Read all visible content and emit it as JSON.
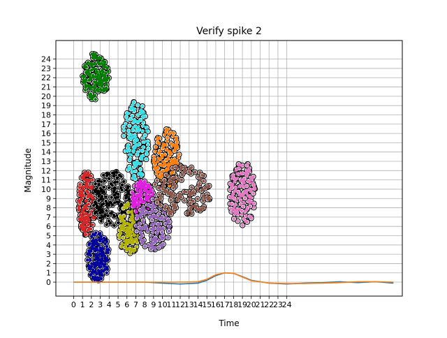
{
  "chart_data": {
    "type": "scatter",
    "title": "Verify spike 2",
    "xlabel": "Time",
    "ylabel": "Magnitude",
    "xlim": [
      -2,
      37
    ],
    "ylim": [
      -1.5,
      26
    ],
    "xticks": [
      "0",
      "1",
      "2",
      "3",
      "4",
      "5",
      "6",
      "7",
      "8",
      "9",
      "10",
      "11",
      "12",
      "13",
      "14",
      "15",
      "16",
      "17",
      "18",
      "19",
      "20",
      "21",
      "22",
      "23",
      "24"
    ],
    "yticks": [
      "0",
      "1",
      "2",
      "3",
      "4",
      "5",
      "6",
      "7",
      "8",
      "9",
      "10",
      "11",
      "12",
      "13",
      "14",
      "15",
      "16",
      "17",
      "18",
      "19",
      "20",
      "21",
      "22",
      "23",
      "24"
    ],
    "grid": true,
    "clusters": [
      {
        "name": "red",
        "color": "#d62728",
        "x": [
          0.5,
          2.5
        ],
        "y": [
          5.0,
          12.0
        ]
      },
      {
        "name": "blue",
        "color": "#0000a0",
        "x": [
          1.5,
          4.0
        ],
        "y": [
          0.0,
          5.5
        ]
      },
      {
        "name": "green",
        "color": "#007f00",
        "x": [
          1.0,
          4.0
        ],
        "y": [
          19.5,
          24.8
        ]
      },
      {
        "name": "black",
        "color": "#000000",
        "x": [
          2.0,
          6.5
        ],
        "y": [
          6.0,
          12.0
        ]
      },
      {
        "name": "olive",
        "color": "#b3b300",
        "x": [
          5.0,
          7.5
        ],
        "y": [
          3.0,
          8.5
        ]
      },
      {
        "name": "cyan",
        "color": "#36e0e8",
        "x": [
          5.5,
          8.5
        ],
        "y": [
          11.0,
          19.5
        ]
      },
      {
        "name": "magenta",
        "color": "#e020e0",
        "x": [
          6.5,
          9.0
        ],
        "y": [
          7.0,
          11.0
        ]
      },
      {
        "name": "purple",
        "color": "#9467bd",
        "x": [
          7.0,
          11.0
        ],
        "y": [
          3.5,
          9.0
        ]
      },
      {
        "name": "orange",
        "color": "#ff7f0e",
        "x": [
          9.0,
          12.0
        ],
        "y": [
          10.0,
          16.5
        ]
      },
      {
        "name": "brown",
        "color": "#8c564b",
        "x": [
          9.0,
          15.5
        ],
        "y": [
          7.0,
          12.5
        ]
      },
      {
        "name": "pink",
        "color": "#e377c2",
        "x": [
          17.5,
          20.5
        ],
        "y": [
          6.0,
          13.0
        ]
      }
    ],
    "series": [
      {
        "name": "line-blue",
        "color": "#1f77b4",
        "x": [
          0,
          5,
          8,
          10,
          12,
          14,
          15,
          16,
          17,
          18,
          19,
          20,
          22,
          24,
          26,
          28,
          30,
          32,
          34,
          36
        ],
        "y": [
          0,
          0,
          0,
          -0.1,
          -0.2,
          -0.1,
          0.2,
          0.7,
          1.0,
          0.95,
          0.6,
          0.2,
          -0.1,
          -0.2,
          -0.1,
          -0.05,
          0.05,
          -0.05,
          0.05,
          -0.1
        ]
      },
      {
        "name": "line-orange",
        "color": "#ff7f0e",
        "x": [
          0,
          5,
          8,
          10,
          12,
          14,
          15,
          16,
          17,
          18,
          19,
          20,
          22,
          24,
          26,
          28,
          30,
          32,
          34,
          36
        ],
        "y": [
          0,
          0,
          0,
          0,
          0,
          0.05,
          0.3,
          0.8,
          1.0,
          0.95,
          0.55,
          0.15,
          -0.1,
          -0.15,
          -0.15,
          -0.1,
          -0.05,
          0.05,
          0.05,
          0.0
        ]
      }
    ]
  }
}
